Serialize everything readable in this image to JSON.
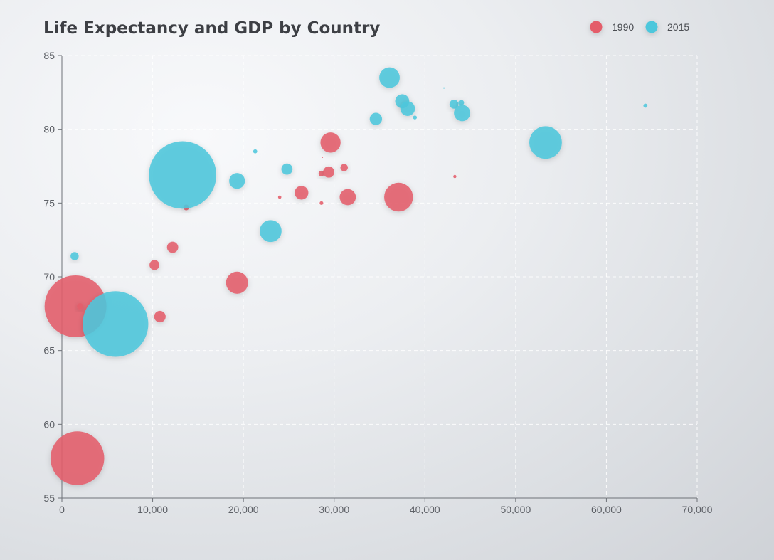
{
  "chart_data": {
    "type": "scatter",
    "title": "Life Expectancy and GDP by Country",
    "xlabel": "",
    "ylabel": "",
    "xlim": [
      0,
      70000
    ],
    "ylim": [
      55,
      85
    ],
    "x_ticks": [
      0,
      10000,
      20000,
      30000,
      40000,
      50000,
      60000,
      70000
    ],
    "x_tick_labels": [
      "0",
      "10,000",
      "20,000",
      "30,000",
      "40,000",
      "50,000",
      "60,000",
      "70,000"
    ],
    "y_ticks": [
      55,
      60,
      65,
      70,
      75,
      80,
      85
    ],
    "y_tick_labels": [
      "55",
      "60",
      "65",
      "70",
      "75",
      "80",
      "85"
    ],
    "grid": true,
    "legend_position": "top-right",
    "series": [
      {
        "name": "1990",
        "color": "#e45d6b",
        "points": [
          {
            "gdp": 1500,
            "life": 68,
            "pop": 1154605773
          },
          {
            "gdp": 1700,
            "life": 57.7,
            "pop": 870601776
          },
          {
            "gdp": 2000,
            "life": 68,
            "pop": 12000000
          },
          {
            "gdp": 10200,
            "life": 70.8,
            "pop": 30000000
          },
          {
            "gdp": 10800,
            "life": 67.3,
            "pop": 40000000
          },
          {
            "gdp": 12200,
            "life": 72,
            "pop": 38000000
          },
          {
            "gdp": 13700,
            "life": 74.7,
            "pop": 10000000
          },
          {
            "gdp": 19300,
            "life": 69.6,
            "pop": 147000000
          },
          {
            "gdp": 24000,
            "life": 75.4,
            "pop": 3300000
          },
          {
            "gdp": 26400,
            "life": 75.7,
            "pop": 57000000
          },
          {
            "gdp": 28600,
            "life": 75,
            "pop": 4000000
          },
          {
            "gdp": 28600,
            "life": 77,
            "pop": 10000000
          },
          {
            "gdp": 28700,
            "life": 78.1,
            "pop": 300000
          },
          {
            "gdp": 29400,
            "life": 77.1,
            "pop": 38000000
          },
          {
            "gdp": 29600,
            "life": 79.1,
            "pop": 123000000
          },
          {
            "gdp": 31100,
            "life": 77.4,
            "pop": 17000000
          },
          {
            "gdp": 31500,
            "life": 75.4,
            "pop": 79000000
          },
          {
            "gdp": 37100,
            "life": 75.4,
            "pop": 250000000
          },
          {
            "gdp": 43300,
            "life": 76.8,
            "pop": 3000000
          }
        ]
      },
      {
        "name": "2015",
        "color": "#4ec7dc",
        "points": [
          {
            "gdp": 1400,
            "life": 71.4,
            "pop": 20000000
          },
          {
            "gdp": 5900,
            "life": 66.8,
            "pop": 1300000000
          },
          {
            "gdp": 13300,
            "life": 76.9,
            "pop": 1371220000
          },
          {
            "gdp": 19300,
            "life": 76.5,
            "pop": 75000000
          },
          {
            "gdp": 21300,
            "life": 78.5,
            "pop": 5000000
          },
          {
            "gdp": 23000,
            "life": 73.1,
            "pop": 145000000
          },
          {
            "gdp": 24800,
            "life": 77.3,
            "pop": 38000000
          },
          {
            "gdp": 34600,
            "life": 80.7,
            "pop": 46000000
          },
          {
            "gdp": 36100,
            "life": 83.5,
            "pop": 127000000
          },
          {
            "gdp": 37500,
            "life": 81.9,
            "pop": 60000000
          },
          {
            "gdp": 38100,
            "life": 81.4,
            "pop": 65000000
          },
          {
            "gdp": 38900,
            "life": 80.8,
            "pop": 4600000
          },
          {
            "gdp": 42100,
            "life": 82.8,
            "pop": 300000
          },
          {
            "gdp": 43200,
            "life": 81.7,
            "pop": 24000000
          },
          {
            "gdp": 44000,
            "life": 81.8,
            "pop": 10000000
          },
          {
            "gdp": 44100,
            "life": 81.1,
            "pop": 81000000
          },
          {
            "gdp": 53300,
            "life": 79.1,
            "pop": 320000000
          },
          {
            "gdp": 64300,
            "life": 81.6,
            "pop": 5000000
          }
        ]
      }
    ]
  }
}
